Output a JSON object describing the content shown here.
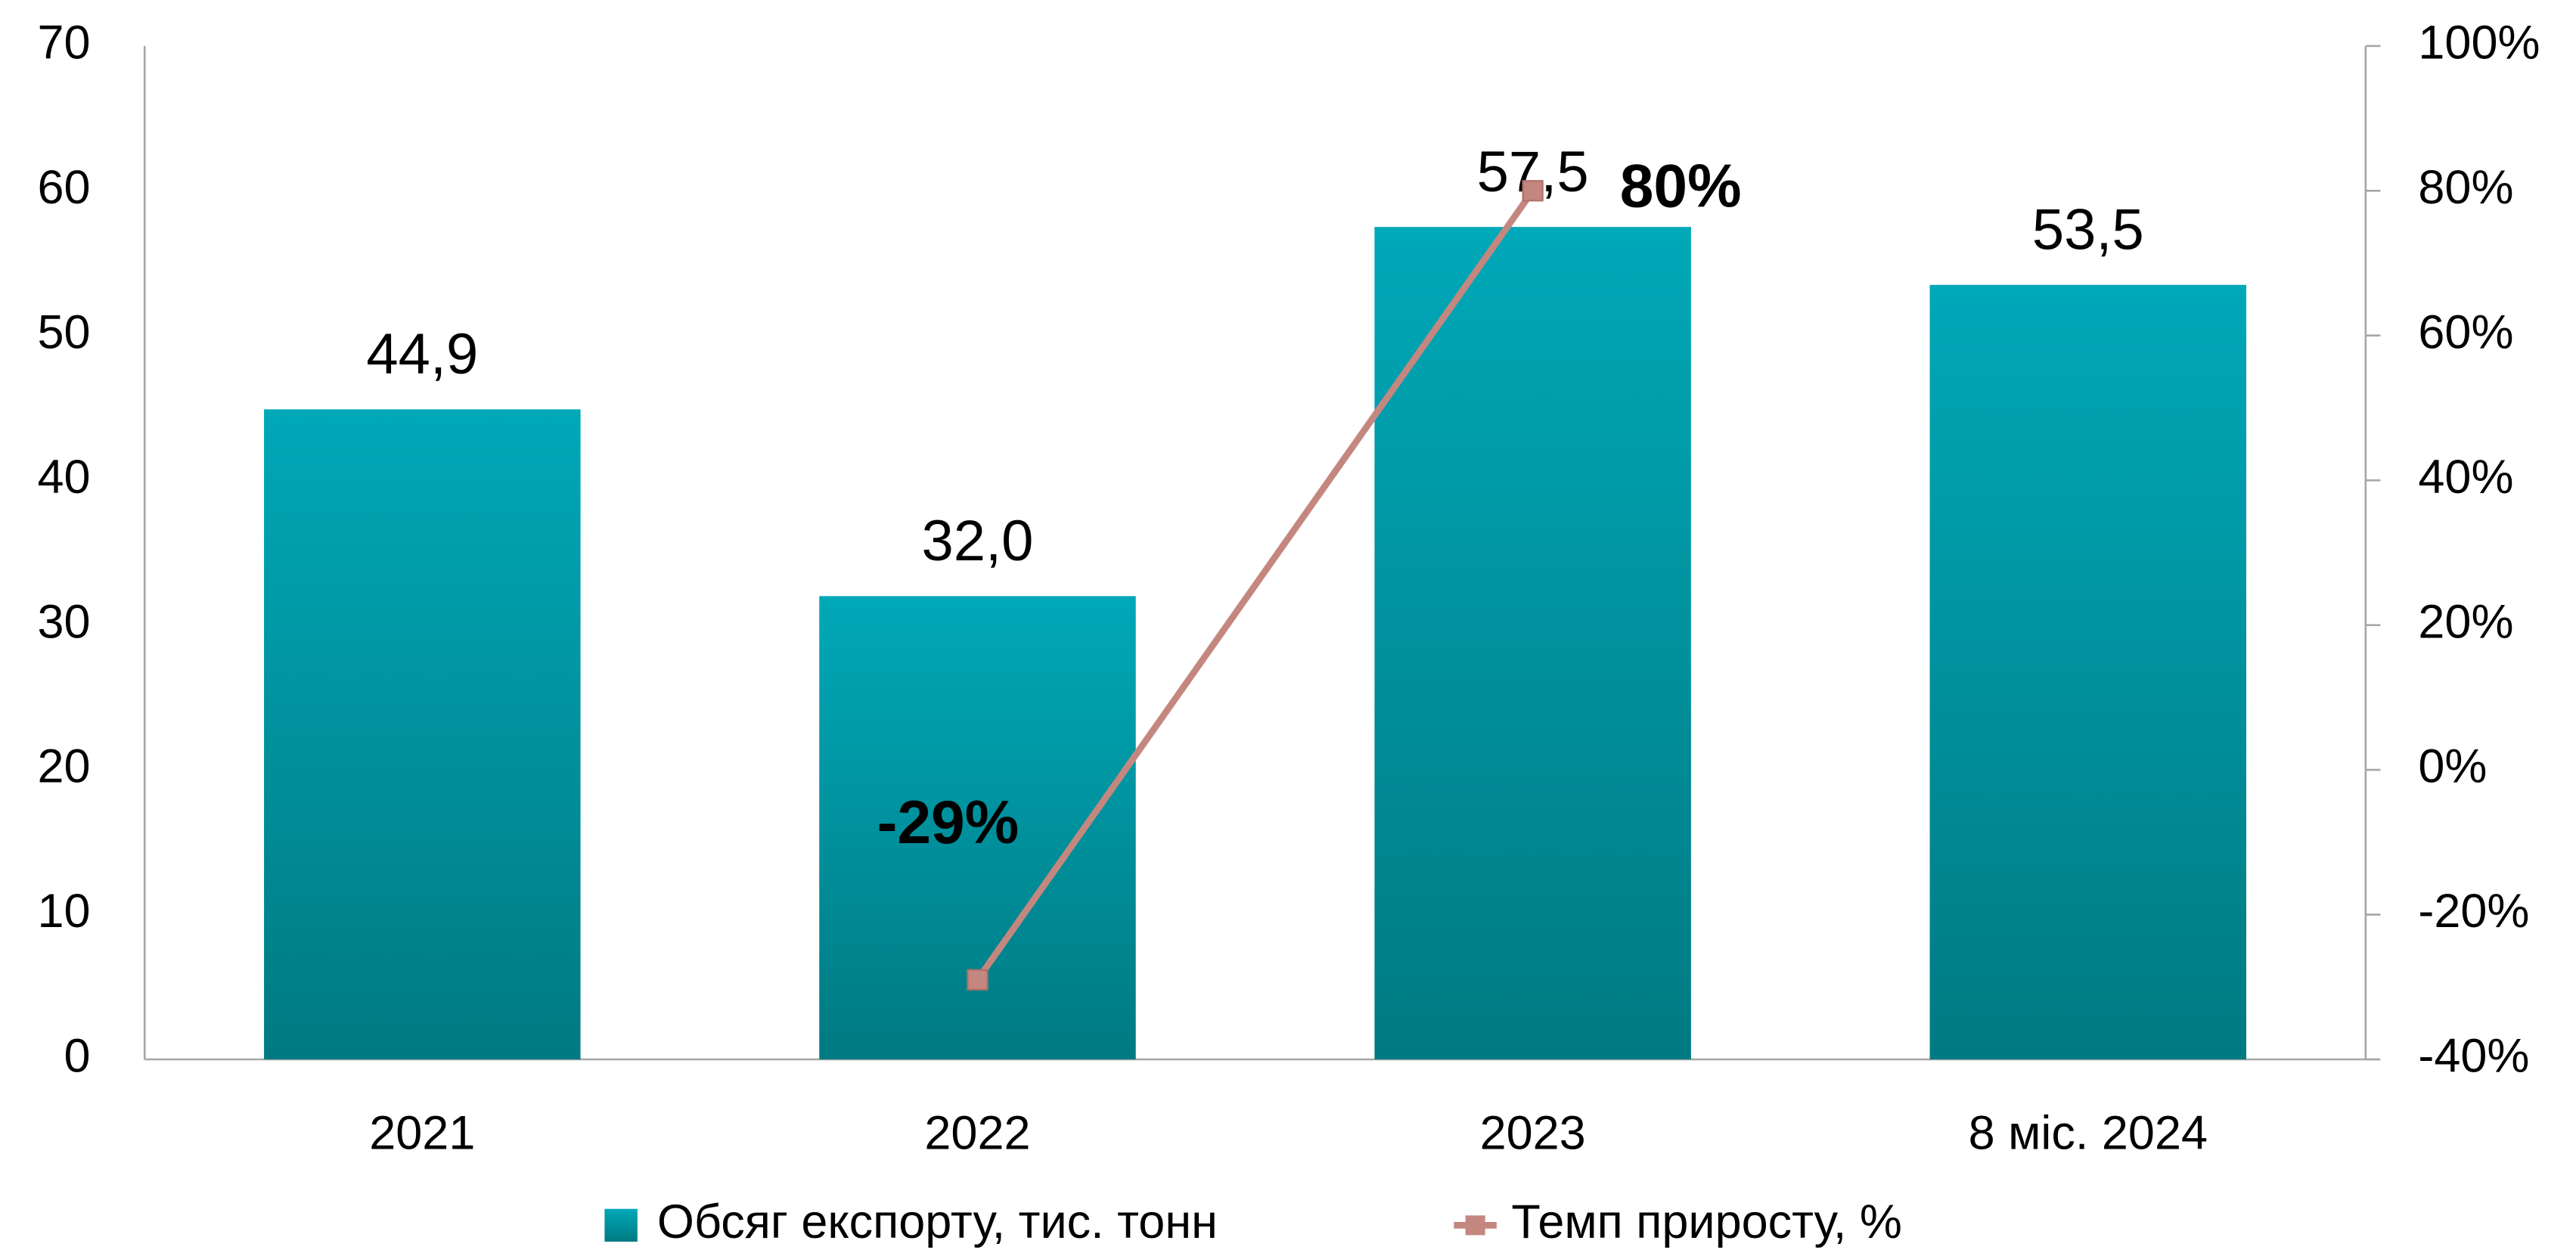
{
  "chart_data": {
    "type": "bar-line",
    "categories": [
      "2021",
      "2022",
      "2023",
      "8 міс. 2024"
    ],
    "series": [
      {
        "name": "Обсяг експорту, тис. тонн",
        "type": "bar",
        "color": "#009aa8",
        "values": [
          44.9,
          32.0,
          57.5,
          53.5
        ],
        "value_labels": [
          "44,9",
          "32,0",
          "57,5",
          "53,5"
        ]
      },
      {
        "name": "Темп приросту, %",
        "type": "line",
        "axis": "y2",
        "color": "#c4877f",
        "values": [
          null,
          -29,
          80,
          null
        ],
        "value_labels": [
          null,
          "-29%",
          "80%",
          null
        ]
      }
    ],
    "ylim": [
      0,
      70
    ],
    "yticks": [
      0,
      10,
      20,
      30,
      40,
      50,
      60,
      70
    ],
    "y2lim": [
      -40,
      100
    ],
    "y2ticks": [
      {
        "value": -40,
        "label": "-40%"
      },
      {
        "value": -20,
        "label": "-20%"
      },
      {
        "value": 0,
        "label": "0%"
      },
      {
        "value": 20,
        "label": "20%"
      },
      {
        "value": 40,
        "label": "40%"
      },
      {
        "value": 60,
        "label": "60%"
      },
      {
        "value": 80,
        "label": "80%"
      },
      {
        "value": 100,
        "label": "100%"
      }
    ],
    "legend": "bottom"
  }
}
